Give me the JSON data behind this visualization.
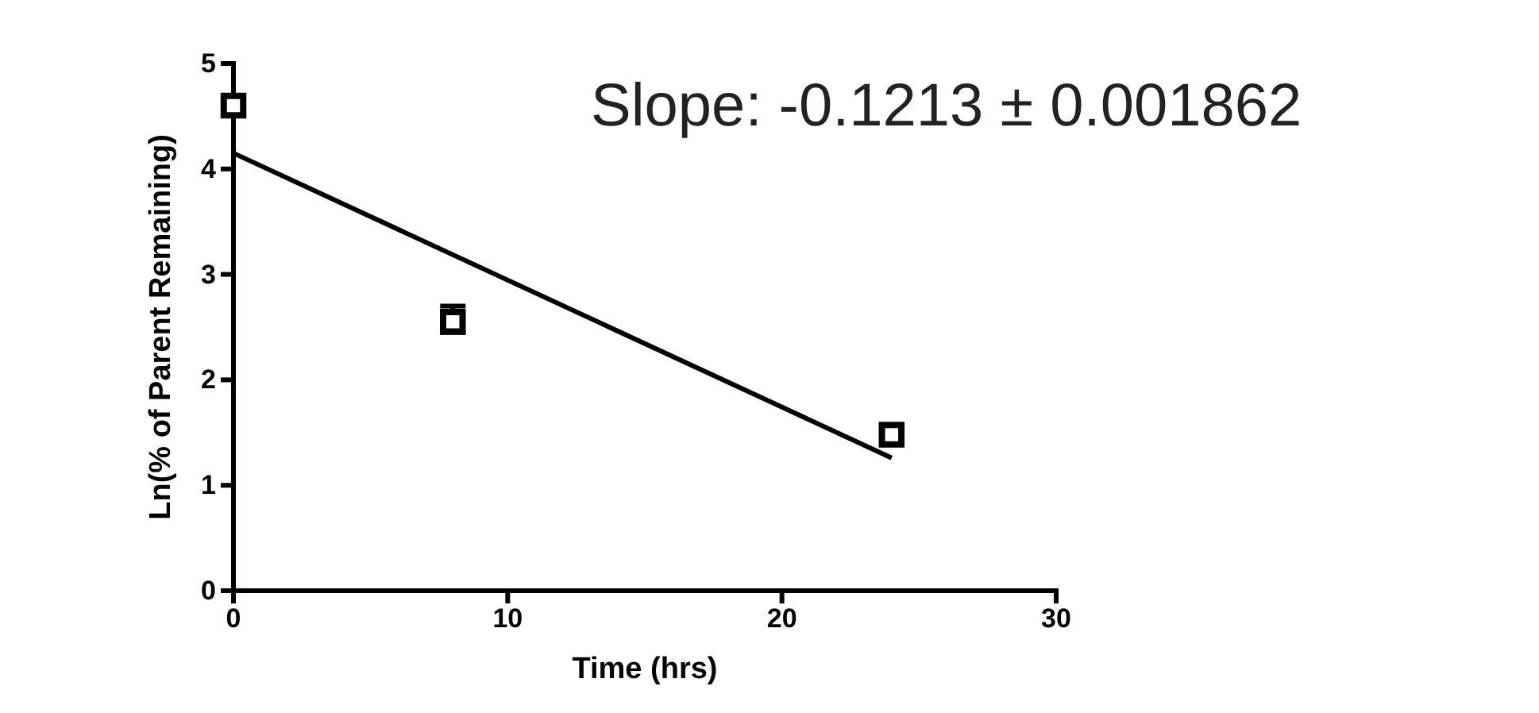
{
  "chart_data": {
    "type": "scatter",
    "xlabel": "Time (hrs)",
    "ylabel": "Ln(% of Parent Remaining)",
    "annotations": [
      "Slope: -0.1213 ± 0.001862"
    ],
    "xlim": [
      0,
      30
    ],
    "xticks": [
      0,
      10,
      20,
      30
    ],
    "ylim": [
      0,
      5
    ],
    "yticks": [
      0,
      1,
      2,
      3,
      4,
      5
    ],
    "grid": false,
    "marker": "square",
    "series": [
      {
        "color": "#000000",
        "x": [
          0,
          8,
          24
        ],
        "values": [
          4.6,
          2.55,
          1.48
        ],
        "errors": [
          null,
          [
            2.45,
            2.7
          ],
          null
        ]
      },
      {
        "type": "line",
        "color": "#000000",
        "x": [
          0,
          24
        ],
        "values": [
          4.15,
          1.26
        ],
        "marker": "none",
        "line_style": "solid"
      }
    ]
  }
}
